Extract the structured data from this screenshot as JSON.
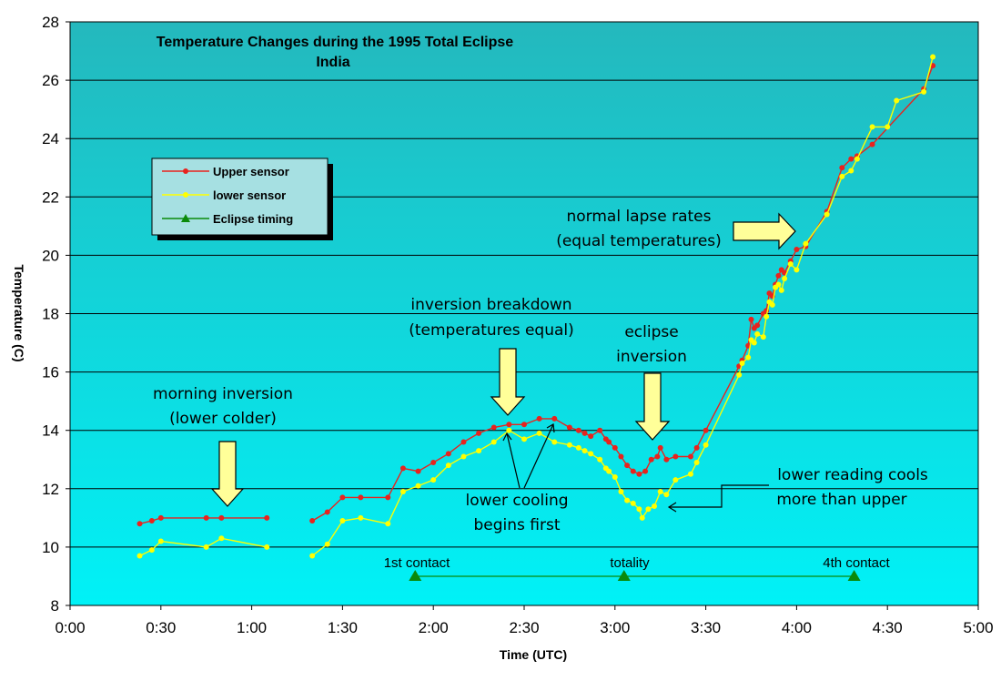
{
  "chart_data": {
    "type": "line",
    "title_lines": [
      "Temperature Changes during the 1995 Total Eclipse",
      "India"
    ],
    "xlabel": "Time (UTC)",
    "ylabel": "Temperature (C)",
    "xlim": [
      "0:00",
      "5:00"
    ],
    "ylim": [
      8,
      28
    ],
    "x_ticks": [
      "0:00",
      "0:30",
      "1:00",
      "1:30",
      "2:00",
      "2:30",
      "3:00",
      "3:30",
      "4:00",
      "4:30",
      "5:00"
    ],
    "y_ticks": [
      8,
      10,
      12,
      14,
      16,
      18,
      20,
      22,
      24,
      26,
      28
    ],
    "grid": "horizontal",
    "legend_placement": "upper-left",
    "series": [
      {
        "name": "Upper sensor",
        "color": "#e8231e",
        "segments": [
          [
            [
              "0:23",
              10.8
            ],
            [
              "0:27",
              10.9
            ],
            [
              "0:30",
              11.0
            ],
            [
              "0:45",
              11.0
            ],
            [
              "0:50",
              11.0
            ],
            [
              "1:05",
              11.0
            ]
          ],
          [
            [
              "1:20",
              10.9
            ],
            [
              "1:25",
              11.2
            ],
            [
              "1:30",
              11.7
            ],
            [
              "1:36",
              11.7
            ],
            [
              "1:45",
              11.7
            ],
            [
              "1:50",
              12.7
            ],
            [
              "1:55",
              12.6
            ],
            [
              "2:00",
              12.9
            ],
            [
              "2:05",
              13.2
            ],
            [
              "2:10",
              13.6
            ],
            [
              "2:15",
              13.9
            ],
            [
              "2:20",
              14.1
            ],
            [
              "2:25",
              14.2
            ],
            [
              "2:30",
              14.2
            ],
            [
              "2:35",
              14.4
            ],
            [
              "2:40",
              14.4
            ],
            [
              "2:45",
              14.1
            ],
            [
              "2:48",
              14.0
            ],
            [
              "2:50",
              13.9
            ],
            [
              "2:52",
              13.8
            ],
            [
              "2:55",
              14.0
            ],
            [
              "2:57",
              13.7
            ],
            [
              "2:58",
              13.6
            ],
            [
              "3:00",
              13.4
            ],
            [
              "3:02",
              13.1
            ],
            [
              "3:04",
              12.8
            ],
            [
              "3:06",
              12.6
            ],
            [
              "3:08",
              12.5
            ],
            [
              "3:10",
              12.6
            ],
            [
              "3:12",
              13.0
            ],
            [
              "3:14",
              13.1
            ],
            [
              "3:15",
              13.4
            ],
            [
              "3:17",
              13.0
            ],
            [
              "3:20",
              13.1
            ],
            [
              "3:25",
              13.1
            ],
            [
              "3:27",
              13.4
            ],
            [
              "3:30",
              14.0
            ],
            [
              "3:41",
              16.2
            ],
            [
              "3:42",
              16.4
            ],
            [
              "3:44",
              16.9
            ],
            [
              "3:45",
              17.8
            ],
            [
              "3:46",
              17.5
            ],
            [
              "3:47",
              17.6
            ],
            [
              "3:49",
              18.0
            ],
            [
              "3:50",
              18.1
            ],
            [
              "3:51",
              18.7
            ],
            [
              "3:52",
              18.6
            ],
            [
              "3:53",
              19.0
            ],
            [
              "3:54",
              19.3
            ],
            [
              "3:55",
              19.5
            ],
            [
              "3:56",
              19.4
            ],
            [
              "3:58",
              19.8
            ],
            [
              "4:00",
              20.2
            ],
            [
              "4:03",
              20.3
            ],
            [
              "4:10",
              21.5
            ],
            [
              "4:15",
              23.0
            ],
            [
              "4:18",
              23.3
            ],
            [
              "4:20",
              23.4
            ],
            [
              "4:25",
              23.8
            ],
            [
              "4:42",
              25.7
            ],
            [
              "4:45",
              26.5
            ]
          ]
        ]
      },
      {
        "name": "lower sensor",
        "color": "#ffff00",
        "segments": [
          [
            [
              "0:23",
              9.7
            ],
            [
              "0:27",
              9.9
            ],
            [
              "0:30",
              10.2
            ],
            [
              "0:45",
              10.0
            ],
            [
              "0:50",
              10.3
            ],
            [
              "1:05",
              10.0
            ]
          ],
          [
            [
              "1:20",
              9.7
            ],
            [
              "1:25",
              10.1
            ],
            [
              "1:30",
              10.9
            ],
            [
              "1:36",
              11.0
            ],
            [
              "1:45",
              10.8
            ],
            [
              "1:50",
              11.9
            ],
            [
              "1:55",
              12.1
            ],
            [
              "2:00",
              12.3
            ],
            [
              "2:05",
              12.8
            ],
            [
              "2:10",
              13.1
            ],
            [
              "2:15",
              13.3
            ],
            [
              "2:20",
              13.6
            ],
            [
              "2:25",
              14.0
            ],
            [
              "2:30",
              13.7
            ],
            [
              "2:35",
              13.9
            ],
            [
              "2:40",
              13.6
            ],
            [
              "2:45",
              13.5
            ],
            [
              "2:48",
              13.4
            ],
            [
              "2:50",
              13.3
            ],
            [
              "2:52",
              13.2
            ],
            [
              "2:55",
              13.0
            ],
            [
              "2:57",
              12.7
            ],
            [
              "2:58",
              12.6
            ],
            [
              "3:00",
              12.4
            ],
            [
              "3:02",
              11.9
            ],
            [
              "3:04",
              11.6
            ],
            [
              "3:06",
              11.5
            ],
            [
              "3:08",
              11.3
            ],
            [
              "3:09",
              11.0
            ],
            [
              "3:11",
              11.3
            ],
            [
              "3:13",
              11.4
            ],
            [
              "3:15",
              11.9
            ],
            [
              "3:17",
              11.8
            ],
            [
              "3:20",
              12.3
            ],
            [
              "3:25",
              12.5
            ],
            [
              "3:27",
              12.9
            ],
            [
              "3:30",
              13.5
            ],
            [
              "3:41",
              15.9
            ],
            [
              "3:42",
              16.3
            ],
            [
              "3:44",
              16.5
            ],
            [
              "3:45",
              17.1
            ],
            [
              "3:46",
              17.0
            ],
            [
              "3:47",
              17.3
            ],
            [
              "3:49",
              17.2
            ],
            [
              "3:50",
              17.9
            ],
            [
              "3:51",
              18.4
            ],
            [
              "3:52",
              18.3
            ],
            [
              "3:53",
              18.9
            ],
            [
              "3:54",
              19.0
            ],
            [
              "3:55",
              18.8
            ],
            [
              "3:56",
              19.2
            ],
            [
              "3:58",
              19.7
            ],
            [
              "4:00",
              19.5
            ],
            [
              "4:03",
              20.4
            ],
            [
              "4:10",
              21.4
            ],
            [
              "4:15",
              22.7
            ],
            [
              "4:18",
              22.9
            ],
            [
              "4:20",
              23.3
            ],
            [
              "4:25",
              24.4
            ],
            [
              "4:30",
              24.4
            ],
            [
              "4:33",
              25.3
            ],
            [
              "4:42",
              25.6
            ],
            [
              "4:45",
              26.8
            ]
          ]
        ]
      },
      {
        "name": "Eclipse timing",
        "color": "#0a8a0a",
        "segments": [
          [
            [
              "1:54",
              9.0
            ],
            [
              "3:03",
              9.0
            ],
            [
              "4:19",
              9.0
            ]
          ]
        ]
      }
    ],
    "event_labels": [
      {
        "text": "1st contact",
        "x": "1:54"
      },
      {
        "text": "totality",
        "x": "3:03"
      },
      {
        "text": "4th  contact",
        "x": "4:19"
      }
    ],
    "annotations": [
      {
        "lines": [
          "morning inversion",
          "(lower colder)"
        ]
      },
      {
        "lines": [
          "inversion breakdown",
          "(temperatures equal)"
        ]
      },
      {
        "lines": [
          "eclipse",
          "inversion"
        ]
      },
      {
        "lines": [
          "normal lapse rates",
          "(equal temperatures)"
        ]
      },
      {
        "lines": [
          "lower cooling",
          "begins first"
        ]
      },
      {
        "lines": [
          "lower reading cools",
          "more than upper"
        ]
      }
    ]
  }
}
